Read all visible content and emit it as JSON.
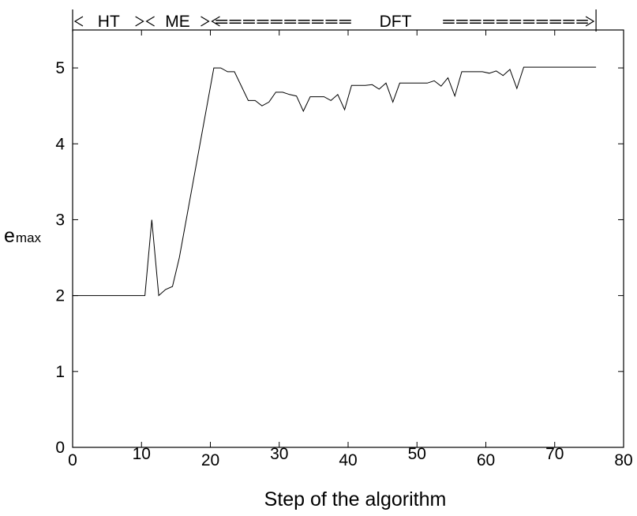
{
  "chart_data": {
    "type": "line",
    "xlabel": "Step of the  algorithm",
    "ylabel_main": "e",
    "ylabel_sub": "max",
    "xlim": [
      0,
      80
    ],
    "ylim": [
      0,
      5.5
    ],
    "xticks": [
      0,
      10,
      20,
      30,
      40,
      50,
      60,
      70,
      80
    ],
    "yticks": [
      0,
      1,
      2,
      3,
      4,
      5
    ],
    "grid": false,
    "phases": [
      {
        "label": "HT",
        "start": 0,
        "end": 10.5
      },
      {
        "label": "ME",
        "start": 10.5,
        "end": 20
      },
      {
        "label": "DFT",
        "start": 20,
        "end": 76
      }
    ],
    "arrow_fill": "==========",
    "arrow_fill_right": "===========",
    "series": [
      {
        "x": [
          0,
          10.5,
          11.5,
          12.5,
          13.5,
          14.5,
          15.5,
          20.5,
          21.5,
          22.5,
          23.5,
          25.5,
          26.5,
          27.5,
          28.5,
          29.5,
          30.5,
          31.5,
          32.5,
          33.5,
          34.5,
          35.5,
          36.5,
          37.5,
          38.5,
          39.5,
          40.5,
          41.5,
          42.5,
          43.5,
          44.5,
          45.5,
          46.5,
          47.5,
          48.5,
          49.5,
          50.5,
          51.5,
          52.5,
          53.5,
          54.5,
          55.5,
          56.5,
          57.5,
          58.5,
          59.5,
          60.5,
          61.5,
          62.5,
          63.5,
          64.5,
          65.5,
          76
        ],
        "y": [
          2.0,
          2.0,
          3.0,
          2.0,
          2.08,
          2.12,
          2.5,
          5.0,
          5.0,
          4.95,
          4.95,
          4.57,
          4.57,
          4.5,
          4.55,
          4.68,
          4.68,
          4.65,
          4.63,
          4.43,
          4.62,
          4.62,
          4.62,
          4.57,
          4.65,
          4.45,
          4.77,
          4.77,
          4.77,
          4.78,
          4.72,
          4.8,
          4.55,
          4.8,
          4.8,
          4.8,
          4.8,
          4.8,
          4.83,
          4.76,
          4.87,
          4.63,
          4.95,
          4.95,
          4.95,
          4.95,
          4.93,
          4.96,
          4.9,
          4.98,
          4.73,
          5.01,
          5.01
        ]
      }
    ],
    "line_color": "#000000"
  }
}
